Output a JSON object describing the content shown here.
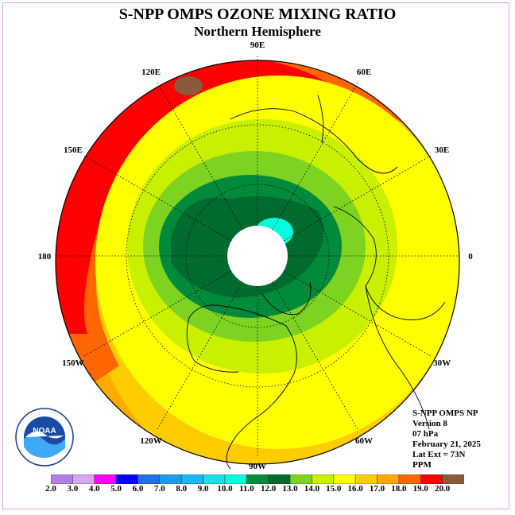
{
  "title": "S-NPP OMPS OZONE MIXING RATIO",
  "subtitle": "Northern Hemisphere",
  "map": {
    "projection": "north-polar-stereographic",
    "longitude_labels": [
      {
        "text": "90E",
        "lon": 90
      },
      {
        "text": "60E",
        "lon": 60
      },
      {
        "text": "30E",
        "lon": 30
      },
      {
        "text": "0",
        "lon": 0
      },
      {
        "text": "30W",
        "lon": -30
      },
      {
        "text": "60W",
        "lon": -60
      },
      {
        "text": "90W",
        "lon": -90
      },
      {
        "text": "120W",
        "lon": -120
      },
      {
        "text": "150W",
        "lon": -150
      },
      {
        "text": "180",
        "lon": 180
      },
      {
        "text": "150E",
        "lon": 150
      },
      {
        "text": "120E",
        "lon": 120
      }
    ],
    "data_gap": "polar night (no data, white)"
  },
  "info": {
    "instrument": "S-NPP OMPS NP",
    "version": "Version 8",
    "level": "07 hPa",
    "date": "February 21, 2025",
    "lat_ext": "Lat Ext = 73N",
    "units": "PPM"
  },
  "colorbar": {
    "levels": [
      "2.0",
      "3.0",
      "4.0",
      "5.0",
      "6.0",
      "7.0",
      "8.0",
      "9.0",
      "10.0",
      "11.0",
      "12.0",
      "13.0",
      "14.0",
      "15.0",
      "16.0",
      "17.0",
      "18.0",
      "19.0",
      "20.0"
    ],
    "colors": [
      "#b07ee8",
      "#d7a6f0",
      "#ff00ff",
      "#0000ff",
      "#1e6fe8",
      "#1a9bf0",
      "#18b9f5",
      "#1ae0e8",
      "#00ffdd",
      "#008a3b",
      "#006b2f",
      "#7ed321",
      "#c8f000",
      "#ffff00",
      "#ffcc00",
      "#ffaa00",
      "#ff6600",
      "#ff0000",
      "#8b5a3c"
    ]
  },
  "logo": {
    "text": "NOAA",
    "ring_text": "NATIONAL OCEANIC AND ATMOSPHERIC ADMINISTRATION · U.S. DEPARTMENT OF COMMERCE"
  }
}
